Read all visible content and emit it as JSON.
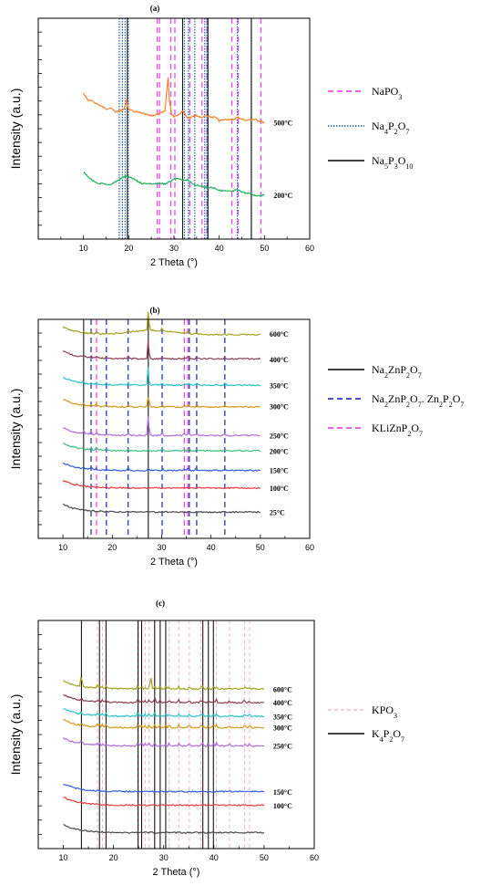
{
  "chart_data": [
    {
      "type": "line",
      "panel_label": "(a)",
      "xlabel": "2 Theta (°)",
      "ylabel": "Intensity (a.u.)",
      "xlim": [
        0,
        60
      ],
      "xticks": [
        10,
        20,
        30,
        40,
        50,
        60
      ],
      "series": [
        {
          "name": "500°C",
          "color": "#ff7f27",
          "baseline": 0.53,
          "x": [
            10,
            11,
            12,
            13,
            14,
            15,
            16,
            17,
            18,
            19,
            19.5,
            20,
            21,
            22,
            23,
            24,
            25,
            26,
            27,
            28,
            28.7,
            29,
            29.5,
            30,
            31,
            32,
            33,
            34,
            35,
            36,
            37,
            38,
            39,
            40,
            41,
            42,
            43,
            44,
            45,
            46,
            47,
            48,
            49,
            50
          ],
          "y": [
            0.13,
            0.1,
            0.09,
            0.08,
            0.07,
            0.06,
            0.06,
            0.05,
            0.05,
            0.06,
            0.09,
            0.06,
            0.05,
            0.04,
            0.04,
            0.03,
            0.03,
            0.03,
            0.04,
            0.05,
            0.2,
            0.09,
            0.04,
            0.03,
            0.03,
            0.05,
            0.02,
            0.02,
            0.03,
            0.02,
            0.03,
            0.02,
            0.02,
            0.01,
            0.01,
            0.01,
            0.01,
            0.02,
            0.01,
            0.01,
            0.01,
            0.01,
            0.0,
            0.0
          ]
        },
        {
          "name": "200°C",
          "color": "#22b25a",
          "baseline": 0.2,
          "x": [
            10,
            11,
            12,
            13,
            14,
            15,
            16,
            17,
            18,
            19,
            20,
            21,
            22,
            23,
            24,
            25,
            26,
            27,
            28,
            29,
            30,
            31,
            32,
            33,
            34,
            35,
            36,
            37,
            38,
            39,
            40,
            41,
            42,
            43,
            44,
            45,
            46,
            47,
            48,
            49,
            50
          ],
          "y": [
            0.1,
            0.08,
            0.06,
            0.05,
            0.05,
            0.05,
            0.05,
            0.06,
            0.07,
            0.08,
            0.08,
            0.07,
            0.06,
            0.05,
            0.05,
            0.05,
            0.05,
            0.05,
            0.05,
            0.06,
            0.07,
            0.07,
            0.06,
            0.07,
            0.05,
            0.04,
            0.04,
            0.03,
            0.03,
            0.03,
            0.02,
            0.02,
            0.02,
            0.02,
            0.02,
            0.01,
            0.01,
            0.01,
            0.0,
            0.0,
            0.0
          ]
        }
      ],
      "reference_lines": [
        {
          "name": "NaPO3",
          "name_sub": "3",
          "name_base": "NaPO",
          "style": "magenta-dash",
          "positions": [
            26.3,
            26.8,
            29.3,
            30.2,
            33.5,
            36.2,
            37.3,
            42.8,
            44.2,
            49.2
          ]
        },
        {
          "name": "Na4P2O7",
          "style": "blue-dot",
          "positions": [
            17.9,
            18.6,
            19.2,
            19.9,
            32.3,
            33.2,
            34.6,
            36.8,
            37.3,
            44.0,
            47.1
          ]
        },
        {
          "name": "Na5P3O10",
          "style": "black-solid",
          "positions": [
            19.7,
            31.9,
            37.5,
            47.1
          ]
        }
      ],
      "legend": [
        {
          "label": "NaPO",
          "sub1": "3",
          "mid": "",
          "sub2": "",
          "tail": ""
        },
        {
          "label": "Na",
          "sub1": "4",
          "mid": "P",
          "sub2": "2",
          "tail": "O",
          "sub3": "7"
        },
        {
          "label": "Na",
          "sub1": "5",
          "mid": "P",
          "sub2": "3",
          "tail": "O",
          "sub3": "10"
        }
      ]
    },
    {
      "type": "line",
      "panel_label": "(b)",
      "xlabel": "2 Theta (°)",
      "ylabel": "Intensity (a.u.)",
      "xlim": [
        5,
        60
      ],
      "xticks": [
        10,
        20,
        30,
        40,
        50,
        60
      ],
      "series": [
        {
          "name": "600°C",
          "color": "#a3a31b",
          "baseline": 0.93
        },
        {
          "name": "400°C",
          "color": "#8b3d4f",
          "baseline": 0.82
        },
        {
          "name": "350°C",
          "color": "#26c4c8",
          "baseline": 0.7
        },
        {
          "name": "300°C",
          "color": "#d39a18",
          "baseline": 0.6
        },
        {
          "name": "250°C",
          "color": "#b06be0",
          "baseline": 0.47
        },
        {
          "name": "200°C",
          "color": "#3fbf7f",
          "baseline": 0.4
        },
        {
          "name": "150°C",
          "color": "#2f5fd8",
          "baseline": 0.31
        },
        {
          "name": "100°C",
          "color": "#e83a3a",
          "baseline": 0.23
        },
        {
          "name": "25°C",
          "color": "#4a4a4a",
          "baseline": 0.12
        }
      ],
      "reference_lines": [
        {
          "name": "Na2ZnP2O7",
          "style": "black-solid",
          "positions": [
            14.2,
            27.3
          ]
        },
        {
          "name": "Na2ZnP2O7. Zn2P2O7",
          "style": "blue-dash",
          "positions": [
            15.7,
            18.8,
            23.2,
            30.1,
            35.6,
            37.1,
            42.8
          ]
        },
        {
          "name": "KLiZnP2O7",
          "style": "magenta-dash",
          "positions": [
            16.8,
            34.6,
            35.3
          ]
        }
      ],
      "legend": [
        {
          "label": "Na",
          "sub1": "2",
          "mid": "ZnP",
          "sub2": "2",
          "tail": "O",
          "sub3": "7"
        },
        {
          "label": "Na",
          "sub1": "2",
          "mid": "ZnP",
          "sub2": "2",
          "tail": "O",
          "sub3": "7",
          "extra": ". Zn",
          "sub4": "2",
          "extra2": "P",
          "sub5": "2",
          "extra3": "O",
          "sub6": "7"
        },
        {
          "label": "KLiZnP",
          "sub1": "2",
          "mid": "O",
          "sub2": "7",
          "tail": ""
        }
      ]
    },
    {
      "type": "line",
      "panel_label": "(c)",
      "xlabel": "2 Theta (°)",
      "ylabel": "Intensity (a.u.)",
      "xlim": [
        5,
        60
      ],
      "xticks": [
        10,
        20,
        30,
        40,
        50,
        60
      ],
      "series": [
        {
          "name": "600°C",
          "color": "#a3a31b",
          "baseline": 0.7
        },
        {
          "name": "400°C",
          "color": "#8b3d4f",
          "baseline": 0.64
        },
        {
          "name": "350°C",
          "color": "#26c4c8",
          "baseline": 0.58
        },
        {
          "name": "300°C",
          "color": "#d39a18",
          "baseline": 0.53
        },
        {
          "name": "250°C",
          "color": "#b06be0",
          "baseline": 0.45
        },
        {
          "name": "150°C",
          "color": "#2f5fd8",
          "baseline": 0.25
        },
        {
          "name": "100°C",
          "color": "#e83a3a",
          "baseline": 0.19
        },
        {
          "name": "",
          "color": "#4a4a4a",
          "baseline": 0.07
        }
      ],
      "reference_lines": [
        {
          "name": "KPO3",
          "style": "pink-dash",
          "positions": [
            16.8,
            17.8,
            24.8,
            26.3,
            27.1,
            28.2,
            31.1,
            33.0,
            35.1,
            37.4,
            40.5,
            43.1,
            46.1,
            47.1
          ]
        },
        {
          "name": "K4P2O7",
          "style": "black-solid",
          "positions": [
            13.6,
            17.2,
            18.5,
            24.9,
            25.6,
            28.2,
            29.3,
            30.4,
            37.8,
            38.9,
            39.9
          ]
        }
      ],
      "legend": [
        {
          "label": "KPO",
          "sub1": "3",
          "mid": "",
          "sub2": "",
          "tail": ""
        },
        {
          "label": "K",
          "sub1": "4",
          "mid": "P",
          "sub2": "2",
          "tail": "O",
          "sub3": "7"
        }
      ]
    }
  ]
}
